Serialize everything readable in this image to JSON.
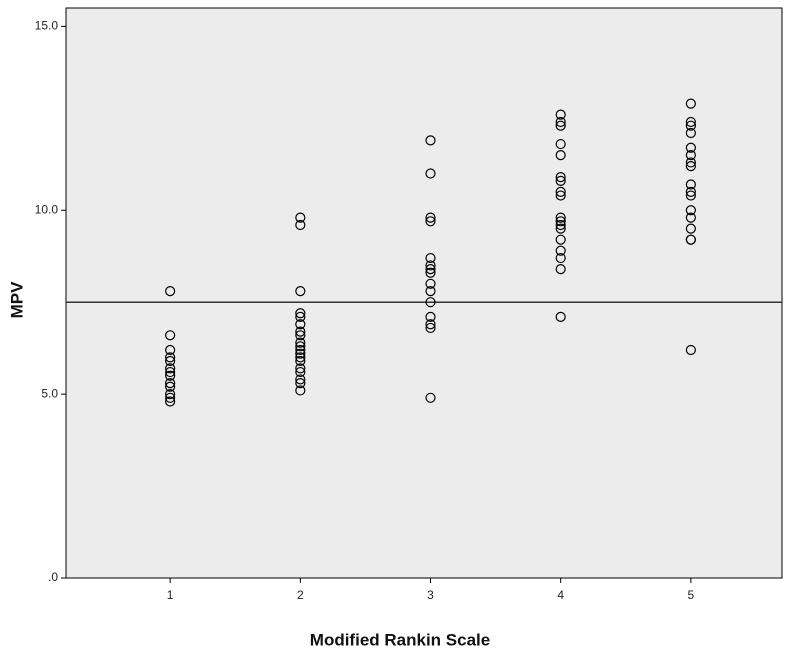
{
  "chart_data": {
    "type": "scatter",
    "x_label": "Modified Rankin Scale",
    "y_label": "MPV",
    "color": "#000000",
    "xlim": [
      0.2,
      5.7
    ],
    "ylim": [
      0,
      15.5
    ],
    "xticks": [
      1,
      2,
      3,
      4,
      5
    ],
    "yticks": [
      {
        "value": 0,
        "label": ".0"
      },
      {
        "value": 5,
        "label": "5.0"
      },
      {
        "value": 10,
        "label": "10.0"
      },
      {
        "value": 15,
        "label": "15.0"
      }
    ],
    "reference_line": 7.5,
    "x": [
      1,
      1,
      1,
      1,
      1,
      1,
      1,
      1,
      1,
      1,
      1,
      1,
      1,
      2,
      2,
      2,
      2,
      2,
      2,
      2,
      2,
      2,
      2,
      2,
      2,
      2,
      2,
      2,
      2,
      2,
      2,
      2,
      3,
      3,
      3,
      3,
      3,
      3,
      3,
      3,
      3,
      3,
      3,
      3,
      3,
      3,
      3,
      4,
      4,
      4,
      4,
      4,
      4,
      4,
      4,
      4,
      4,
      4,
      4,
      4,
      4,
      4,
      4,
      4,
      4,
      5,
      5,
      5,
      5,
      5,
      5,
      5,
      5,
      5,
      5,
      5,
      5,
      5,
      5,
      5,
      5,
      5
    ],
    "values": [
      7.8,
      6.6,
      6.2,
      6.0,
      5.9,
      5.7,
      5.6,
      5.5,
      5.3,
      5.2,
      5.0,
      4.9,
      4.8,
      9.8,
      9.6,
      7.8,
      7.2,
      7.1,
      6.9,
      6.7,
      6.6,
      6.4,
      6.3,
      6.2,
      6.1,
      6.0,
      5.9,
      5.7,
      5.6,
      5.4,
      5.3,
      5.1,
      11.9,
      11.0,
      9.8,
      9.7,
      8.7,
      8.5,
      8.4,
      8.3,
      8.0,
      7.8,
      7.5,
      7.1,
      6.9,
      6.8,
      4.9,
      12.6,
      12.4,
      12.3,
      11.8,
      11.5,
      10.9,
      10.8,
      10.5,
      10.4,
      9.8,
      9.7,
      9.6,
      9.5,
      9.2,
      8.9,
      8.7,
      8.4,
      7.1,
      12.9,
      12.4,
      12.3,
      12.1,
      11.7,
      11.5,
      11.3,
      11.2,
      10.7,
      10.5,
      10.4,
      10.0,
      9.8,
      9.5,
      9.2,
      9.2,
      6.2
    ]
  }
}
